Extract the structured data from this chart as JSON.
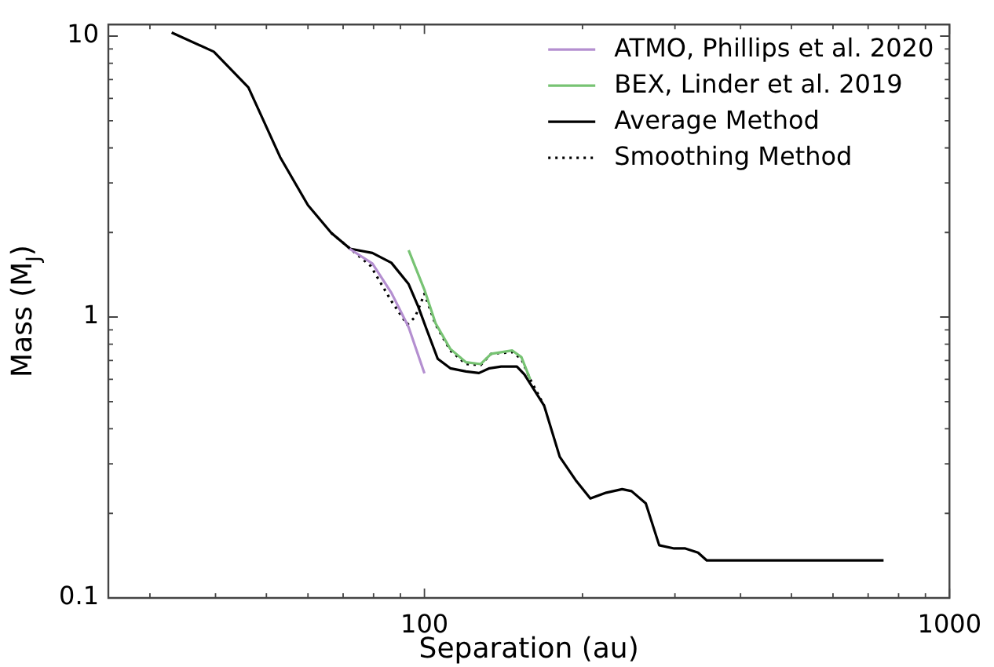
{
  "chart_data": {
    "type": "line",
    "xlabel": "Separation (au)",
    "ylabel": "Mass (M$_{J}$)",
    "log": "xy",
    "grid": false,
    "legend": "top right",
    "marker": "none",
    "xlim": [
      25,
      1000
    ],
    "ylim": [
      0.1,
      11
    ],
    "xticks": [
      {
        "value": 30,
        "label": null
      },
      {
        "value": 40,
        "label": null
      },
      {
        "value": 50,
        "label": null
      },
      {
        "value": 60,
        "label": null
      },
      {
        "value": 70,
        "label": null
      },
      {
        "value": 80,
        "label": null
      },
      {
        "value": 90,
        "label": null
      },
      100,
      {
        "value": 200,
        "label": null
      },
      {
        "value": 300,
        "label": null
      },
      {
        "value": 400,
        "label": null
      },
      {
        "value": 500,
        "label": null
      },
      {
        "value": 600,
        "label": null
      },
      {
        "value": 700,
        "label": null
      },
      {
        "value": 800,
        "label": null
      },
      {
        "value": 900,
        "label": null
      },
      1000
    ],
    "yticks": [
      0.1,
      {
        "value": 0.2,
        "label": null
      },
      {
        "value": 0.3,
        "label": null
      },
      {
        "value": 0.4,
        "label": null
      },
      {
        "value": 0.5,
        "label": null
      },
      {
        "value": 0.6,
        "label": null
      },
      {
        "value": 0.7,
        "label": null
      },
      {
        "value": 0.8,
        "label": null
      },
      {
        "value": 0.9,
        "label": null
      },
      1,
      {
        "value": 2,
        "label": null
      },
      {
        "value": 3,
        "label": null
      },
      {
        "value": 4,
        "label": null
      },
      {
        "value": 5,
        "label": null
      },
      {
        "value": 6,
        "label": null
      },
      {
        "value": 7,
        "label": null
      },
      {
        "value": 8,
        "label": null
      },
      {
        "value": 9,
        "label": null
      },
      10
    ],
    "series": [
      {
        "name": "ATMO, Phillips et al. 2020",
        "color": "#b48fd0",
        "line_style": "solid",
        "x": [
          72,
          79.6,
          86.5,
          93.3,
          100
        ],
        "values": [
          1.75,
          1.55,
          1.22,
          0.92,
          0.63
        ]
      },
      {
        "name": "BEX, Linder et al. 2019",
        "color": "#77c373",
        "line_style": "solid",
        "x": [
          93.3,
          100,
          105,
          112,
          120,
          128,
          134,
          147,
          153,
          159
        ],
        "values": [
          1.73,
          1.25,
          0.95,
          0.77,
          0.69,
          0.68,
          0.74,
          0.76,
          0.72,
          0.6
        ]
      },
      {
        "name": "Average Method",
        "color": "#000000",
        "line_style": "solid",
        "x": [
          33,
          39.7,
          46.2,
          53.1,
          60,
          66.5,
          72.2,
          79.6,
          86.5,
          93.3,
          97.3,
          100.7,
          106,
          112,
          120,
          127,
          133,
          140,
          150,
          155,
          169,
          181,
          194,
          207,
          222,
          238,
          248,
          264,
          280,
          299,
          314,
          332,
          345,
          749
        ],
        "values": [
          10.3,
          8.8,
          6.57,
          3.71,
          2.5,
          1.99,
          1.75,
          1.69,
          1.56,
          1.31,
          1.09,
          0.915,
          0.71,
          0.657,
          0.64,
          0.632,
          0.657,
          0.666,
          0.666,
          0.625,
          0.484,
          0.318,
          0.263,
          0.226,
          0.237,
          0.244,
          0.24,
          0.217,
          0.154,
          0.15,
          0.15,
          0.145,
          0.136,
          0.136
        ]
      },
      {
        "name": "Smoothing Method",
        "color": "#000000",
        "line_style": "dotted",
        "x": [
          66.5,
          72.2,
          79,
          86.5,
          92.7,
          96,
          100,
          105,
          112,
          120,
          128,
          134,
          147,
          153,
          159,
          169
        ],
        "values": [
          1.99,
          1.75,
          1.52,
          1.14,
          0.94,
          1.0,
          1.21,
          0.94,
          0.76,
          0.68,
          0.675,
          0.74,
          0.75,
          0.71,
          0.6,
          0.484
        ]
      }
    ]
  }
}
